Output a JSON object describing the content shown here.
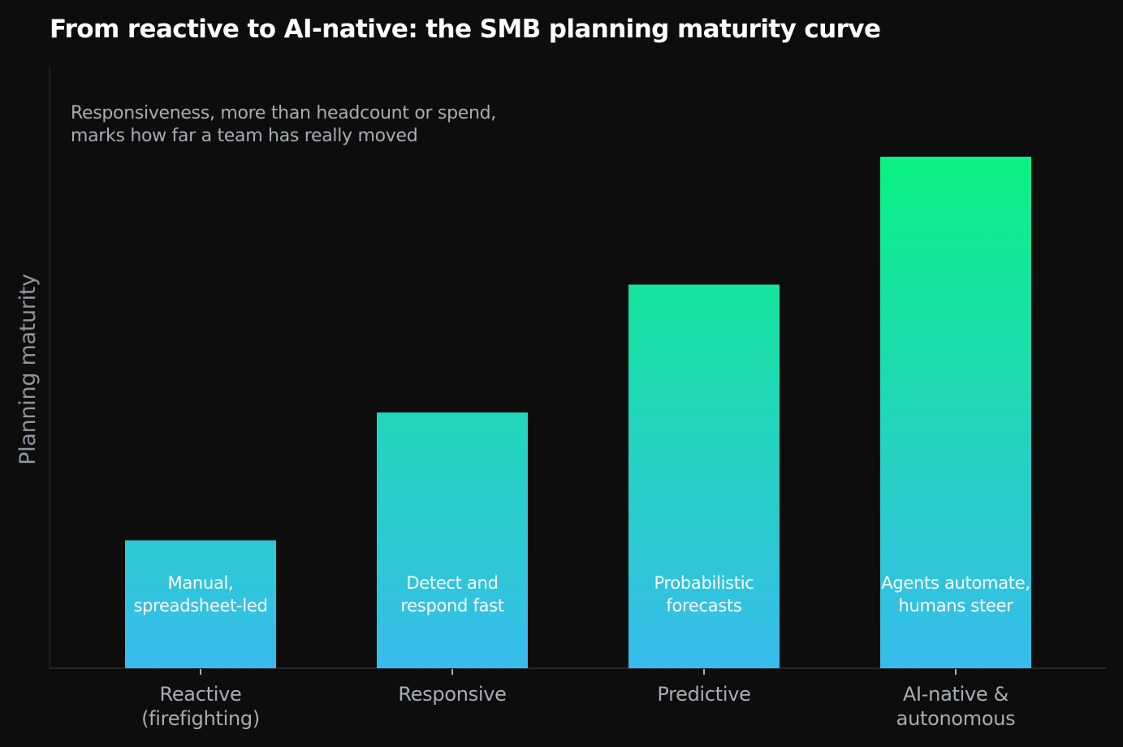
{
  "chart_data": {
    "type": "bar",
    "title": "From reactive to AI-native: the SMB planning maturity curve",
    "subtitle": [
      "Responsiveness, more than headcount or spend,",
      "marks how far a team has really moved"
    ],
    "xlabel": "",
    "ylabel": "Planning maturity",
    "categories": [
      [
        "Reactive",
        "(firefighting)"
      ],
      [
        "Responsive"
      ],
      [
        "Predictive"
      ],
      [
        "AI-native &",
        "autonomous"
      ]
    ],
    "values": [
      1,
      2,
      3,
      4
    ],
    "bar_labels": [
      [
        "Manual,",
        "spreadsheet-led"
      ],
      [
        "Detect and",
        "respond fast"
      ],
      [
        "Probabilistic",
        "forecasts"
      ],
      [
        "Agents automate,",
        "humans steer"
      ]
    ],
    "ylim": [
      0,
      4.1
    ],
    "grid": false,
    "legend": "none",
    "colors": {
      "gradient_top": "#0af184",
      "gradient_bottom": "#37bced",
      "background": "#0d0d0d",
      "axis": "#262626"
    }
  }
}
